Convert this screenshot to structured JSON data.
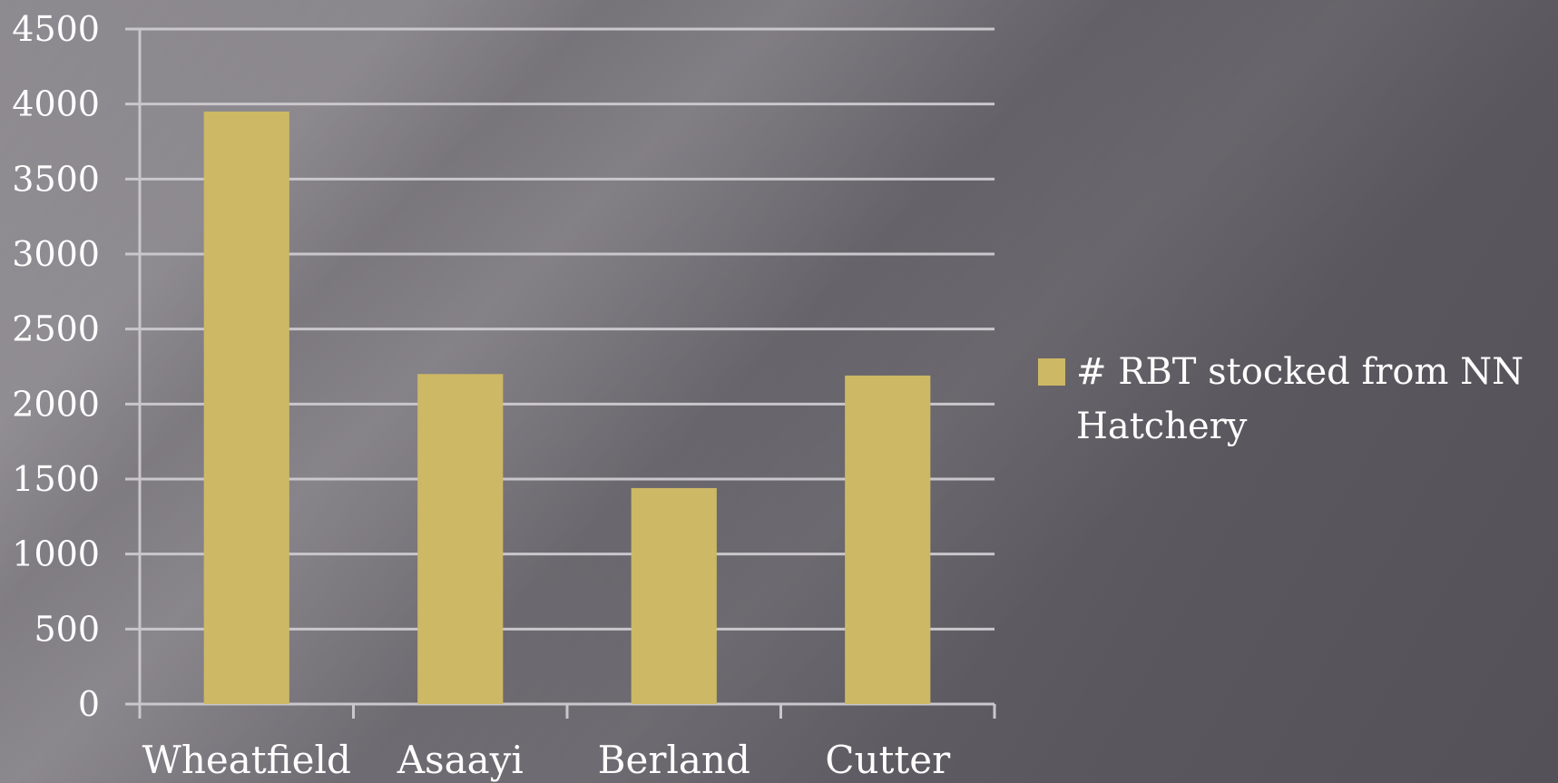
{
  "chart_data": {
    "type": "bar",
    "categories": [
      "Wheatfield",
      "Asaayi",
      "Berland",
      "Cutter"
    ],
    "series": [
      {
        "name": "# RBT stocked from NN Hatchery",
        "values": [
          3950,
          2200,
          1440,
          2190
        ],
        "color": "#cdb865"
      }
    ],
    "ylim": [
      0,
      4500
    ],
    "yticks": [
      0,
      500,
      1000,
      1500,
      2000,
      2500,
      3000,
      3500,
      4000,
      4500
    ],
    "grid": true,
    "legend_position": "right",
    "title": "",
    "xlabel": "",
    "ylabel": ""
  },
  "colors": {
    "gridline": "#c9c7cc",
    "axis": "#c9c7cc",
    "text": "#ffffff"
  }
}
